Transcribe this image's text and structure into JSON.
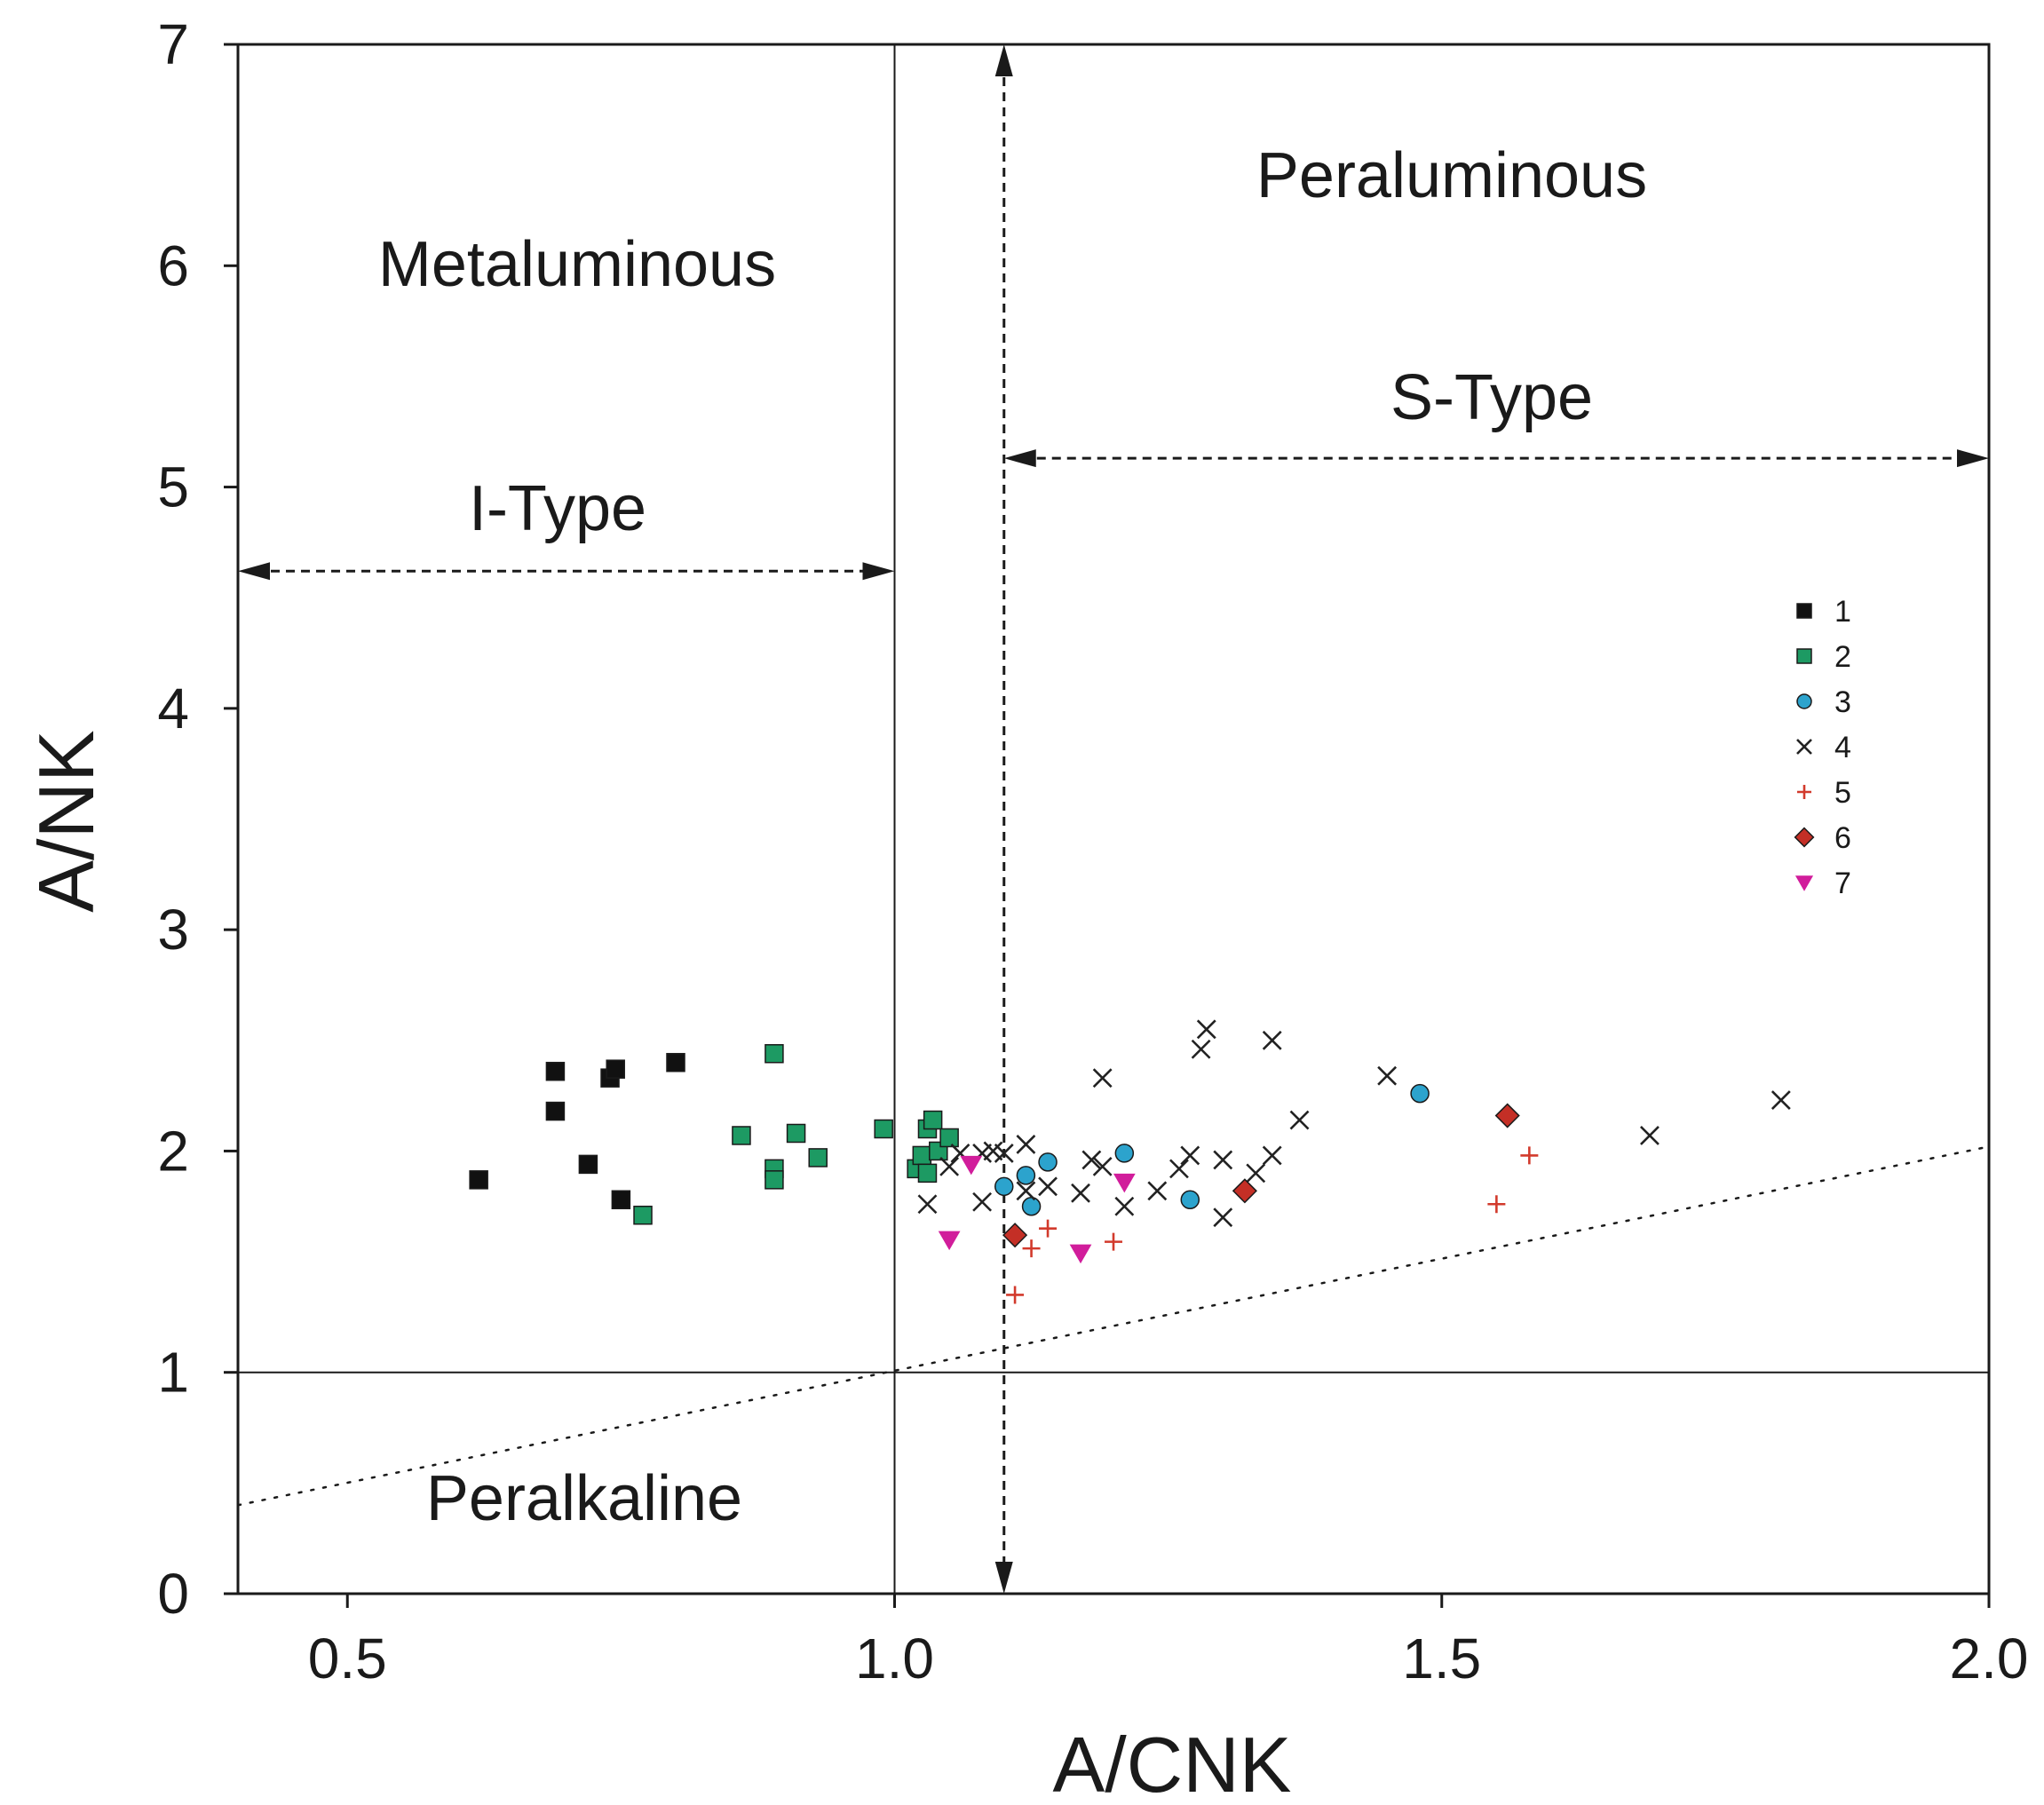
{
  "chart_data": {
    "type": "scatter",
    "title": "",
    "xlabel": "A/CNK",
    "ylabel": "A/NK",
    "xlim": [
      0.4,
      2.0
    ],
    "ylim": [
      0,
      7
    ],
    "x_ticks": [
      "0.5",
      "1.0",
      "1.5",
      "2.0"
    ],
    "y_ticks": [
      "0",
      "1",
      "2",
      "3",
      "4",
      "5",
      "6",
      "7"
    ],
    "grid": false,
    "legend_position": "right",
    "field_labels": {
      "metaluminous": "Metaluminous",
      "peraluminous": "Peraluminous",
      "peralkaline": "Peralkaline",
      "i_type": "I-Type",
      "s_type": "S-Type"
    },
    "divider_lines": {
      "acnk_vertical": 1.0,
      "ank_horizontal": 1.0,
      "type_boundary": 1.1,
      "i_type_arrow_y": 4.62,
      "s_type_arrow_y": 5.13,
      "dotted_line": [
        [
          0.4,
          0.4
        ],
        [
          2.0,
          2.02
        ]
      ]
    },
    "series": [
      {
        "name": "1",
        "marker": "square",
        "color": "#111111",
        "points": [
          [
            0.62,
            1.87
          ],
          [
            0.69,
            2.36
          ],
          [
            0.69,
            2.18
          ],
          [
            0.72,
            1.94
          ],
          [
            0.74,
            2.33
          ],
          [
            0.745,
            2.37
          ],
          [
            0.75,
            1.78
          ],
          [
            0.8,
            2.4
          ]
        ]
      },
      {
        "name": "2",
        "marker": "square",
        "color": "#1d9a63",
        "points": [
          [
            0.77,
            1.71
          ],
          [
            0.86,
            2.07
          ],
          [
            0.89,
            2.44
          ],
          [
            0.89,
            1.92
          ],
          [
            0.89,
            1.87
          ],
          [
            0.91,
            2.08
          ],
          [
            0.93,
            1.97
          ],
          [
            0.99,
            2.1
          ],
          [
            1.02,
            1.92
          ],
          [
            1.025,
            1.98
          ],
          [
            1.03,
            2.1
          ],
          [
            1.03,
            1.9
          ],
          [
            1.035,
            2.14
          ],
          [
            1.04,
            2.0
          ],
          [
            1.05,
            2.06
          ]
        ]
      },
      {
        "name": "3",
        "marker": "circle",
        "color": "#2ca3cd",
        "points": [
          [
            1.1,
            1.84
          ],
          [
            1.12,
            1.89
          ],
          [
            1.125,
            1.75
          ],
          [
            1.14,
            1.95
          ],
          [
            1.21,
            1.99
          ],
          [
            1.27,
            1.78
          ],
          [
            1.48,
            2.26
          ]
        ]
      },
      {
        "name": "4",
        "marker": "x",
        "color": "#222222",
        "points": [
          [
            1.03,
            1.76
          ],
          [
            1.05,
            1.93
          ],
          [
            1.06,
            1.99
          ],
          [
            1.08,
            1.77
          ],
          [
            1.08,
            1.99
          ],
          [
            1.09,
            2.0
          ],
          [
            1.1,
            1.99
          ],
          [
            1.12,
            2.03
          ],
          [
            1.12,
            1.82
          ],
          [
            1.14,
            1.84
          ],
          [
            1.17,
            1.81
          ],
          [
            1.18,
            1.96
          ],
          [
            1.19,
            1.93
          ],
          [
            1.19,
            2.33
          ],
          [
            1.21,
            1.75
          ],
          [
            1.24,
            1.82
          ],
          [
            1.26,
            1.92
          ],
          [
            1.27,
            1.98
          ],
          [
            1.28,
            2.46
          ],
          [
            1.285,
            2.55
          ],
          [
            1.3,
            1.7
          ],
          [
            1.3,
            1.96
          ],
          [
            1.33,
            1.9
          ],
          [
            1.345,
            1.98
          ],
          [
            1.345,
            2.5
          ],
          [
            1.37,
            2.14
          ],
          [
            1.45,
            2.34
          ],
          [
            1.69,
            2.07
          ],
          [
            1.81,
            2.23
          ]
        ]
      },
      {
        "name": "5",
        "marker": "plus",
        "color": "#d23a2c",
        "points": [
          [
            1.11,
            1.35
          ],
          [
            1.125,
            1.56
          ],
          [
            1.14,
            1.65
          ],
          [
            1.2,
            1.59
          ],
          [
            1.55,
            1.76
          ],
          [
            1.58,
            1.98
          ]
        ]
      },
      {
        "name": "6",
        "marker": "diamond",
        "color": "#c42f26",
        "points": [
          [
            1.11,
            1.62
          ],
          [
            1.32,
            1.82
          ],
          [
            1.56,
            2.16
          ]
        ]
      },
      {
        "name": "7",
        "marker": "triangle-down",
        "color": "#d11d9b",
        "points": [
          [
            1.05,
            1.6
          ],
          [
            1.07,
            1.94
          ],
          [
            1.17,
            1.54
          ],
          [
            1.21,
            1.86
          ]
        ]
      }
    ]
  }
}
